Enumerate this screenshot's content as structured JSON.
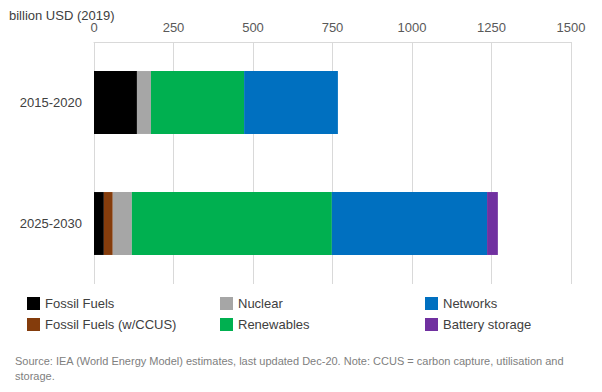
{
  "chart_data": {
    "type": "bar",
    "orientation": "horizontal",
    "stacked": true,
    "title": "billion USD (2019)",
    "note": "Source: IEA (World Energy Model) estimates, last updated Dec-20. Note: CCUS = carbon capture, utilisation and storage.",
    "categories": [
      "2015-2020",
      "2025-2030"
    ],
    "series": [
      {
        "name": "Fossil Fuels",
        "color": "#000000",
        "values": [
          135,
          31
        ]
      },
      {
        "name": "Fossil Fuels (w/CCUS)",
        "color": "#843c0c",
        "values": [
          0,
          28
        ]
      },
      {
        "name": "Nuclear",
        "color": "#a6a6a6",
        "values": [
          44,
          60
        ]
      },
      {
        "name": "Renewables",
        "color": "#00b050",
        "values": [
          293,
          629
        ]
      },
      {
        "name": "Networks",
        "color": "#0070c0",
        "values": [
          295,
          488
        ]
      },
      {
        "name": "Battery storage",
        "color": "#7030a0",
        "values": [
          0,
          34
        ]
      }
    ],
    "xlim": [
      0,
      1500
    ],
    "xticks": [
      0,
      250,
      500,
      750,
      1000,
      1250,
      1500
    ],
    "grid": true,
    "legend": "bottom"
  }
}
